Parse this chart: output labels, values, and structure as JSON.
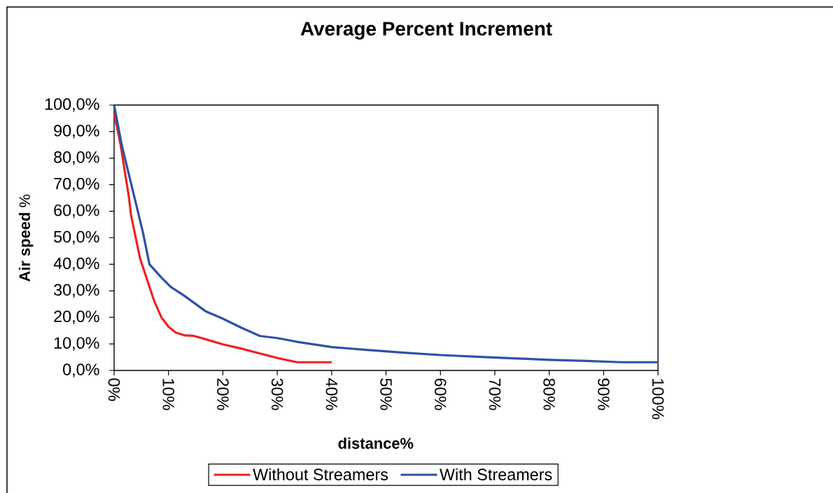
{
  "chart_data": {
    "type": "line",
    "title": "Average Percent Increment",
    "xlabel": "distance%",
    "ylabel": "**Air speed** %",
    "series": [
      {
        "name": "Without Streamers",
        "color": "#ee2222",
        "x": [
          0,
          1.2,
          2,
          2.7,
          3.1,
          3.8,
          4.8,
          6.1,
          7.4,
          8.7,
          10,
          11.3,
          13,
          14.7,
          16.9,
          19.9,
          23.4,
          26.8,
          30.4,
          32,
          33.6,
          40
        ],
        "values": [
          97,
          85,
          74.5,
          65.7,
          58.7,
          51.7,
          42,
          34,
          26,
          20,
          16.5,
          14.3,
          13.2,
          13,
          11.7,
          9.9,
          8.2,
          6.4,
          4.5,
          3.8,
          3.1,
          3.1
        ]
      },
      {
        "name": "With Streamers",
        "color": "#3050a8",
        "x": [
          0,
          1.4,
          2.7,
          4,
          5.3,
          6.5,
          8.7,
          10.4,
          13,
          16.9,
          19.9,
          23.4,
          26.8,
          30,
          33.6,
          40,
          46.8,
          53.3,
          60,
          66.6,
          73.1,
          80,
          86.8,
          93.3,
          100
        ],
        "values": [
          100,
          85,
          74,
          63,
          52,
          40,
          35,
          31.5,
          28,
          22.2,
          19.6,
          16.1,
          13,
          12.2,
          10.8,
          8.8,
          7.7,
          6.7,
          5.8,
          5.2,
          4.6,
          4,
          3.6,
          3.1,
          3.1
        ]
      }
    ],
    "xlim": [
      0,
      100
    ],
    "ylim": [
      0,
      100
    ],
    "xticks": [
      {
        "value": 0,
        "label": "0%"
      },
      {
        "value": 10,
        "label": "10%"
      },
      {
        "value": 20,
        "label": "20%"
      },
      {
        "value": 30,
        "label": "30%"
      },
      {
        "value": 40,
        "label": "40%"
      },
      {
        "value": 50,
        "label": "50%"
      },
      {
        "value": 60,
        "label": "60%"
      },
      {
        "value": 70,
        "label": "70%"
      },
      {
        "value": 80,
        "label": "80%"
      },
      {
        "value": 90,
        "label": "90%"
      },
      {
        "value": 100,
        "label": "100%"
      }
    ],
    "yticks": [
      {
        "value": 0,
        "label": "0,0%"
      },
      {
        "value": 10,
        "label": "10,0%"
      },
      {
        "value": 20,
        "label": "20,0%"
      },
      {
        "value": 30,
        "label": "30,0%"
      },
      {
        "value": 40,
        "label": "40,0%"
      },
      {
        "value": 50,
        "label": "50,0%"
      },
      {
        "value": 60,
        "label": "60,0%"
      },
      {
        "value": 70,
        "label": "70,0%"
      },
      {
        "value": 80,
        "label": "80,0%"
      },
      {
        "value": 90,
        "label": "90,0%"
      },
      {
        "value": 100,
        "label": "100,0%"
      }
    ],
    "legend": "bottom",
    "marker": "none",
    "line_style": "solid"
  }
}
